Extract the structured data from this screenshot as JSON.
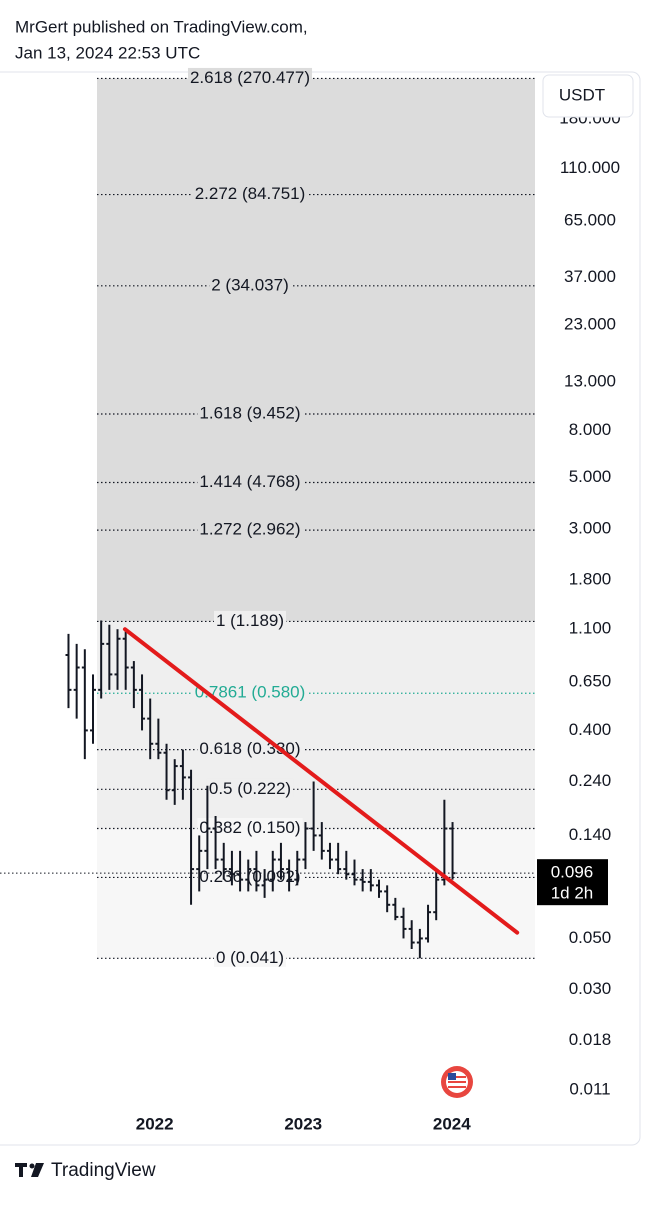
{
  "header": {
    "line1": "MrGert published on TradingView.com,",
    "line2": "Jan 13, 2024 22:53 UTC"
  },
  "footer": {
    "brand": "TradingView"
  },
  "chart_data": {
    "type": "ohlc",
    "currency_button": "USDT",
    "log_scale": true,
    "color": "#131722",
    "xlim": [
      2021.06,
      2024.56
    ],
    "xticks": [
      2022,
      2023,
      2024
    ],
    "ylim": [
      0.009,
      280
    ],
    "yticks": [
      {
        "value": 180,
        "label": "180.000"
      },
      {
        "value": 110,
        "label": "110.000"
      },
      {
        "value": 65,
        "label": "65.000"
      },
      {
        "value": 37,
        "label": "37.000"
      },
      {
        "value": 23,
        "label": "23.000"
      },
      {
        "value": 13,
        "label": "13.000"
      },
      {
        "value": 8,
        "label": "8.000"
      },
      {
        "value": 5,
        "label": "5.000"
      },
      {
        "value": 3,
        "label": "3.000"
      },
      {
        "value": 1.8,
        "label": "1.800"
      },
      {
        "value": 1.1,
        "label": "1.100"
      },
      {
        "value": 0.65,
        "label": "0.650"
      },
      {
        "value": 0.4,
        "label": "0.400"
      },
      {
        "value": 0.24,
        "label": "0.240"
      },
      {
        "value": 0.14,
        "label": "0.140"
      },
      {
        "value": 0.05,
        "label": "0.050"
      },
      {
        "value": 0.03,
        "label": "0.030"
      },
      {
        "value": 0.018,
        "label": "0.018"
      },
      {
        "value": 0.011,
        "label": "0.011"
      }
    ],
    "x": [
      2021.42,
      2021.475,
      2021.53,
      2021.585,
      2021.64,
      2021.695,
      2021.75,
      2021.805,
      2021.86,
      2021.915,
      2021.97,
      2022.025,
      2022.08,
      2022.135,
      2022.19,
      2022.245,
      2022.3,
      2022.355,
      2022.41,
      2022.465,
      2022.52,
      2022.575,
      2022.63,
      2022.685,
      2022.74,
      2022.795,
      2022.85,
      2022.905,
      2022.96,
      2023.015,
      2023.07,
      2023.125,
      2023.18,
      2023.235,
      2023.29,
      2023.345,
      2023.4,
      2023.455,
      2023.51,
      2023.565,
      2023.62,
      2023.675,
      2023.73,
      2023.785,
      2023.84,
      2023.895,
      2023.95,
      2024.005
    ],
    "open": [
      0.85,
      0.6,
      0.75,
      0.4,
      0.6,
      0.95,
      0.7,
      1.0,
      0.75,
      0.6,
      0.45,
      0.35,
      0.32,
      0.22,
      0.28,
      0.25,
      0.1,
      0.12,
      0.15,
      0.11,
      0.1,
      0.095,
      0.09,
      0.1,
      0.085,
      0.09,
      0.11,
      0.1,
      0.09,
      0.11,
      0.15,
      0.14,
      0.12,
      0.11,
      0.1,
      0.095,
      0.09,
      0.088,
      0.085,
      0.08,
      0.07,
      0.062,
      0.055,
      0.048,
      0.05,
      0.065,
      0.09,
      0.15
    ],
    "high": [
      1.05,
      0.95,
      0.9,
      0.7,
      1.2,
      1.15,
      1.1,
      1.1,
      0.8,
      0.7,
      0.55,
      0.45,
      0.35,
      0.3,
      0.33,
      0.27,
      0.14,
      0.23,
      0.17,
      0.13,
      0.12,
      0.12,
      0.11,
      0.12,
      0.1,
      0.12,
      0.13,
      0.11,
      0.12,
      0.16,
      0.24,
      0.16,
      0.13,
      0.13,
      0.12,
      0.11,
      0.1,
      0.1,
      0.09,
      0.085,
      0.075,
      0.068,
      0.06,
      0.055,
      0.07,
      0.1,
      0.2,
      0.16
    ],
    "low": [
      0.5,
      0.45,
      0.3,
      0.35,
      0.55,
      0.6,
      0.6,
      0.6,
      0.5,
      0.4,
      0.3,
      0.3,
      0.2,
      0.19,
      0.2,
      0.07,
      0.08,
      0.1,
      0.1,
      0.09,
      0.085,
      0.08,
      0.08,
      0.08,
      0.075,
      0.08,
      0.09,
      0.08,
      0.085,
      0.1,
      0.12,
      0.11,
      0.1,
      0.095,
      0.09,
      0.085,
      0.08,
      0.08,
      0.075,
      0.065,
      0.06,
      0.05,
      0.045,
      0.041,
      0.048,
      0.06,
      0.085,
      0.09
    ],
    "close": [
      0.6,
      0.75,
      0.4,
      0.6,
      0.95,
      0.7,
      1.0,
      0.75,
      0.6,
      0.45,
      0.35,
      0.32,
      0.22,
      0.28,
      0.25,
      0.1,
      0.12,
      0.15,
      0.11,
      0.1,
      0.095,
      0.09,
      0.1,
      0.085,
      0.09,
      0.11,
      0.1,
      0.09,
      0.11,
      0.15,
      0.14,
      0.12,
      0.11,
      0.1,
      0.095,
      0.09,
      0.088,
      0.085,
      0.08,
      0.07,
      0.062,
      0.055,
      0.048,
      0.05,
      0.065,
      0.09,
      0.15,
      0.096
    ],
    "fib_levels": [
      {
        "label": "2.618 (270.477)",
        "price": 270.477,
        "color": "#131722",
        "band_color": "#dcdcdc"
      },
      {
        "label": "2.272 (84.751)",
        "price": 84.751,
        "color": "#131722",
        "band_color": "#dcdcdc"
      },
      {
        "label": "2 (34.037)",
        "price": 34.037,
        "color": "#131722",
        "band_color": "#dcdcdc"
      },
      {
        "label": "1.618 (9.452)",
        "price": 9.452,
        "color": "#131722",
        "band_color": "#dcdcdc"
      },
      {
        "label": "1.414 (4.768)",
        "price": 4.768,
        "color": "#131722",
        "band_color": "#dcdcdc"
      },
      {
        "label": "1.272 (2.962)",
        "price": 2.962,
        "color": "#131722",
        "band_color": "#dcdcdc"
      },
      {
        "label": "1 (1.189)",
        "price": 1.189,
        "color": "#131722",
        "band_color": "#efefef"
      },
      {
        "label": "0.7861 (0.580)",
        "price": 0.58,
        "color": "#22ab94",
        "band_color": "#efefef"
      },
      {
        "label": "0.618 (0.330)",
        "price": 0.33,
        "color": "#131722",
        "band_color": "#efefef"
      },
      {
        "label": "0.5 (0.222)",
        "price": 0.222,
        "color": "#131722",
        "band_color": "#efefef"
      },
      {
        "label": "0.382 (0.150)",
        "price": 0.15,
        "color": "#131722",
        "band_color": "#f7f7f7"
      },
      {
        "label": "0.236 (0.092)",
        "price": 0.092,
        "color": "#131722",
        "band_color": "#f7f7f7"
      },
      {
        "label": "0 (0.041)",
        "price": 0.041,
        "color": "#131722",
        "band_color": "#f7f7f7"
      }
    ],
    "trendline": {
      "x": [
        2021.8,
        2024.44
      ],
      "y": [
        1.1,
        0.053
      ],
      "color": "#e31b1b"
    },
    "last_price": {
      "value": 0.096,
      "label": "0.096",
      "countdown": "1d 2h"
    }
  }
}
